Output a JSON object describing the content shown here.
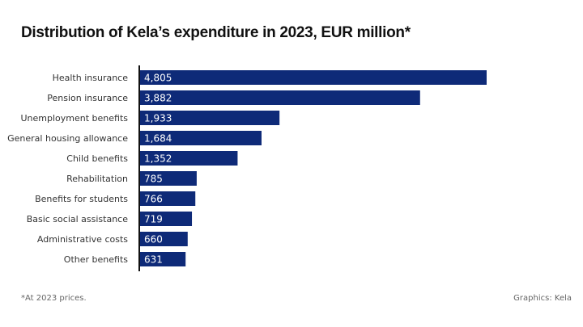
{
  "title": "Distribution of Kela’s expenditure in 2023, EUR million*",
  "footnote": "*At 2023 prices.",
  "credit": "Graphics: Kela",
  "colors": {
    "bar": "#0e2a78",
    "axis": "#111111",
    "value_text": "#ffffff"
  },
  "chart_data": {
    "type": "bar",
    "orientation": "horizontal",
    "categories": [
      "Health insurance",
      "Pension insurance",
      "Unemployment benefits",
      "General housing allowance",
      "Child benefits",
      "Rehabilitation",
      "Benefits for students",
      "Basic social assistance",
      "Administrative costs",
      "Other benefits"
    ],
    "values": [
      4805,
      3882,
      1933,
      1684,
      1352,
      785,
      766,
      719,
      660,
      631
    ],
    "value_labels": [
      "4,805",
      "3,882",
      "1,933",
      "1,684",
      "1,352",
      "785",
      "766",
      "719",
      "660",
      "631"
    ],
    "title": "Distribution of Kela’s expenditure in 2023, EUR million*",
    "xlim": [
      0,
      4805
    ],
    "grid": false,
    "legend": "none"
  }
}
